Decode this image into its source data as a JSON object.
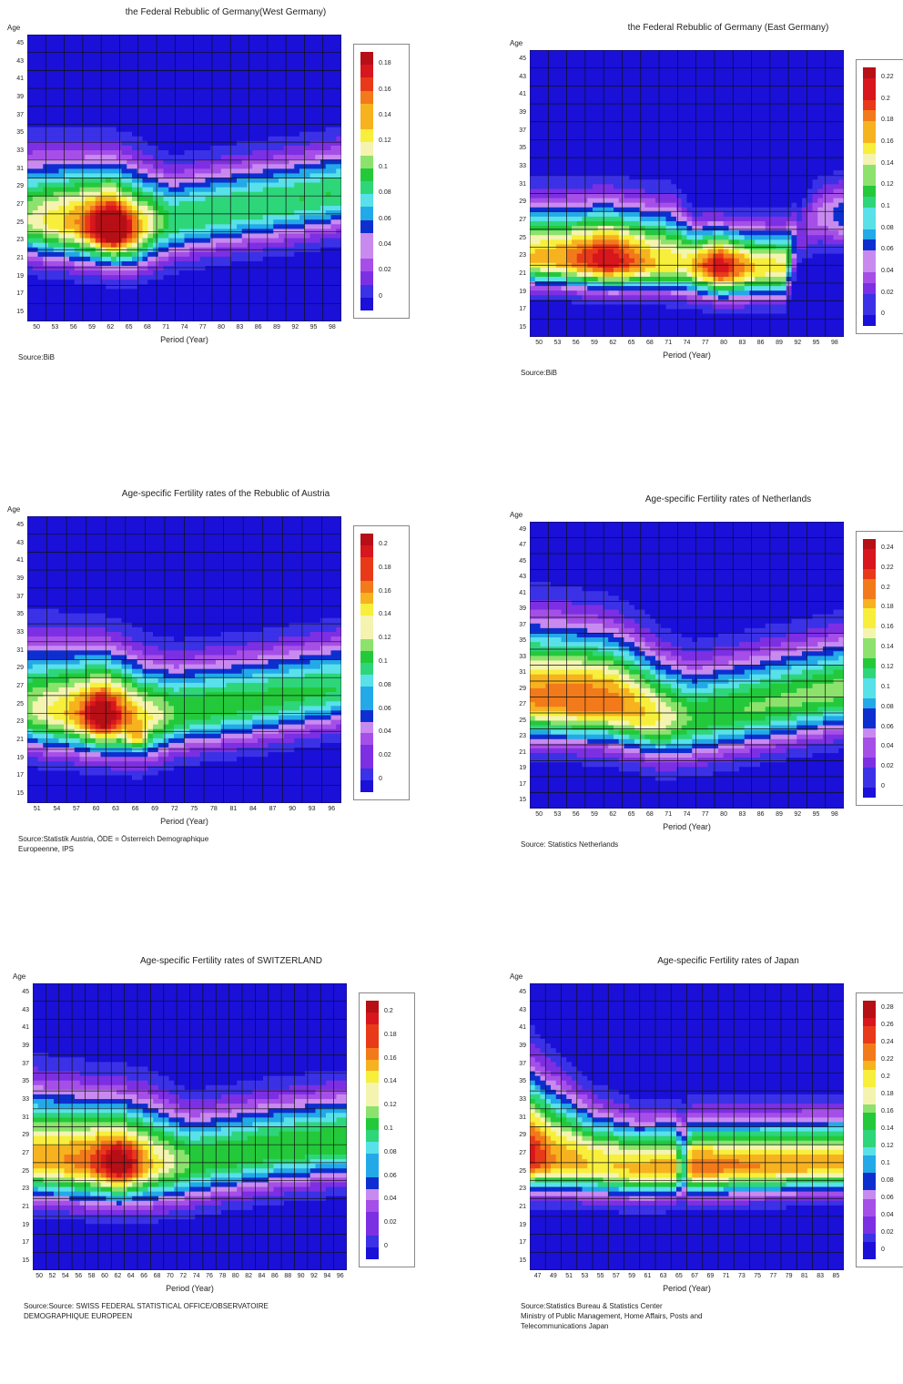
{
  "color_scale": [
    "#1a10d8",
    "#3b31e6",
    "#7d2fe3",
    "#a64fe8",
    "#c98af0",
    "#0d2fd0",
    "#23a9e8",
    "#58e1e9",
    "#2ed67a",
    "#23c93a",
    "#8ce26d",
    "#f4f4b0",
    "#f7ef3b",
    "#f7b21f",
    "#f27a1a",
    "#e83a19",
    "#d7161d",
    "#b60f16"
  ],
  "chart_data": [
    {
      "type": "heatmap",
      "title": "the Federal Rebublic of Germany(West  Germany)",
      "ylabel": "Age",
      "xlabel": "Period (Year)",
      "source": "Source:BiB",
      "x_ticks": [
        "50",
        "53",
        "56",
        "59",
        "62",
        "65",
        "68",
        "71",
        "74",
        "77",
        "80",
        "83",
        "86",
        "89",
        "92",
        "95",
        "98"
      ],
      "y_ticks": [
        "45",
        "43",
        "41",
        "39",
        "37",
        "35",
        "33",
        "31",
        "29",
        "27",
        "25",
        "23",
        "21",
        "19",
        "17",
        "15"
      ],
      "legend": [
        "0.18",
        "0.16",
        "0.14",
        "0.12",
        "0.1",
        "0.08",
        "0.06",
        "0.04",
        "0.02",
        "0"
      ],
      "xlim": [
        1950,
        1998
      ],
      "ylim": [
        15,
        46
      ],
      "peak": {
        "x": 1963,
        "age": 25,
        "value": 0.18
      },
      "center_age": [
        [
          1950,
          26
        ],
        [
          1960,
          25.5
        ],
        [
          1966,
          25
        ],
        [
          1972,
          26
        ],
        [
          1980,
          27
        ],
        [
          1990,
          28
        ],
        [
          1998,
          29
        ]
      ],
      "sigma_up": [
        [
          1950,
          8
        ],
        [
          1966,
          8
        ],
        [
          1972,
          6
        ],
        [
          1998,
          6
        ]
      ],
      "sigma_down": [
        [
          1950,
          5
        ],
        [
          1998,
          5
        ]
      ],
      "amp": [
        [
          1950,
          0.11
        ],
        [
          1958,
          0.14
        ],
        [
          1963,
          0.17
        ],
        [
          1967,
          0.13
        ],
        [
          1972,
          0.09
        ],
        [
          1998,
          0.09
        ]
      ],
      "hotspots": [
        {
          "x": 1963,
          "age": 25,
          "amp": 0.05,
          "sx": 3,
          "sy": 2
        }
      ]
    },
    {
      "type": "heatmap",
      "title": "the Federal Rebublic of Germany  (East Germany)",
      "ylabel": "Age",
      "xlabel": "Period (Year)",
      "source": "Source:BiB",
      "x_ticks": [
        "50",
        "53",
        "56",
        "59",
        "62",
        "65",
        "68",
        "71",
        "74",
        "77",
        "80",
        "83",
        "86",
        "89",
        "92",
        "95",
        "98"
      ],
      "y_ticks": [
        "45",
        "43",
        "41",
        "39",
        "37",
        "35",
        "33",
        "31",
        "29",
        "27",
        "25",
        "23",
        "21",
        "19",
        "17",
        "15"
      ],
      "legend": [
        "0.22",
        "0.2",
        "0.18",
        "0.16",
        "0.14",
        "0.12",
        "0.1",
        "0.08",
        "0.06",
        "0.04",
        "0.02",
        "0"
      ],
      "xlim": [
        1950,
        1998
      ],
      "ylim": [
        15,
        46
      ],
      "peak": {
        "x": 1962,
        "age": 23,
        "value": 0.22
      },
      "center_age": [
        [
          1950,
          23.5
        ],
        [
          1970,
          23
        ],
        [
          1980,
          22.5
        ],
        [
          1989,
          22.5
        ],
        [
          1991,
          26
        ],
        [
          1994,
          28
        ],
        [
          1998,
          28
        ]
      ],
      "sigma_up": [
        [
          1950,
          7
        ],
        [
          1972,
          7
        ],
        [
          1975,
          5
        ],
        [
          1989,
          5
        ],
        [
          1991,
          4
        ],
        [
          1998,
          5
        ]
      ],
      "sigma_down": [
        [
          1950,
          3.5
        ],
        [
          1998,
          4
        ]
      ],
      "amp": [
        [
          1950,
          0.16
        ],
        [
          1955,
          0.17
        ],
        [
          1962,
          0.21
        ],
        [
          1969,
          0.16
        ],
        [
          1974,
          0.15
        ],
        [
          1979,
          0.21
        ],
        [
          1984,
          0.16
        ],
        [
          1989,
          0.15
        ],
        [
          1991,
          0.03
        ],
        [
          1994,
          0.05
        ],
        [
          1998,
          0.07
        ]
      ],
      "hotspots": []
    },
    {
      "type": "heatmap",
      "title": "Age-specific Fertility rates of  the Rebublic of  Austria",
      "ylabel": "Age",
      "xlabel": "Period (Year)",
      "source": "Source:Statistik Austria,  ÖDE = Österreich    Demographique\nEuropeenne,  IPS",
      "x_ticks": [
        "51",
        "54",
        "57",
        "60",
        "63",
        "66",
        "69",
        "72",
        "75",
        "78",
        "81",
        "84",
        "87",
        "90",
        "93",
        "96"
      ],
      "y_ticks": [
        "45",
        "43",
        "41",
        "39",
        "37",
        "35",
        "33",
        "31",
        "29",
        "27",
        "25",
        "23",
        "21",
        "19",
        "17",
        "15"
      ],
      "legend": [
        "0.2",
        "0.18",
        "0.16",
        "0.14",
        "0.12",
        "0.1",
        "0.08",
        "0.06",
        "0.04",
        "0.02",
        "0"
      ],
      "xlim": [
        1951,
        1997
      ],
      "ylim": [
        15,
        46
      ],
      "peak": {
        "x": 1962,
        "age": 24.5,
        "value": 0.2
      },
      "center_age": [
        [
          1951,
          25
        ],
        [
          1962,
          24.5
        ],
        [
          1968,
          24
        ],
        [
          1974,
          25
        ],
        [
          1985,
          26
        ],
        [
          1997,
          27.5
        ]
      ],
      "sigma_up": [
        [
          1951,
          9
        ],
        [
          1966,
          8
        ],
        [
          1973,
          6.5
        ],
        [
          1997,
          6.5
        ]
      ],
      "sigma_down": [
        [
          1951,
          5
        ],
        [
          1997,
          5
        ]
      ],
      "amp": [
        [
          1951,
          0.12
        ],
        [
          1958,
          0.15
        ],
        [
          1962,
          0.18
        ],
        [
          1968,
          0.14
        ],
        [
          1973,
          0.11
        ],
        [
          1997,
          0.1
        ]
      ],
      "hotspots": [
        {
          "x": 1962,
          "age": 24.5,
          "amp": 0.04,
          "sx": 2.5,
          "sy": 2
        },
        {
          "x": 1967,
          "age": 22,
          "amp": 0.04,
          "sx": 1.2,
          "sy": 1
        }
      ]
    },
    {
      "type": "heatmap",
      "title": "Age-specific Fertility rates of  Netherlands",
      "ylabel": "Age",
      "xlabel": "Period (Year)",
      "source": "Source: Statistics Netherlands",
      "x_ticks": [
        "50",
        "53",
        "56",
        "59",
        "62",
        "65",
        "68",
        "71",
        "74",
        "77",
        "80",
        "83",
        "86",
        "89",
        "92",
        "95",
        "98"
      ],
      "y_ticks": [
        "49",
        "47",
        "45",
        "43",
        "41",
        "39",
        "37",
        "35",
        "33",
        "31",
        "29",
        "27",
        "25",
        "23",
        "21",
        "19",
        "17",
        "15"
      ],
      "legend": [
        "0.24",
        "0.22",
        "0.2",
        "0.18",
        "0.16",
        "0.14",
        "0.12",
        "0.1",
        "0.08",
        "0.06",
        "0.04",
        "0.02",
        "0"
      ],
      "xlim": [
        1950,
        1998
      ],
      "ylim": [
        15,
        50
      ],
      "peak": {
        "x": 1960,
        "age": 28,
        "value": 0.24
      },
      "center_age": [
        [
          1950,
          28.5
        ],
        [
          1962,
          28
        ],
        [
          1970,
          26
        ],
        [
          1975,
          26
        ],
        [
          1985,
          27.5
        ],
        [
          1998,
          29.5
        ]
      ],
      "sigma_up": [
        [
          1950,
          11
        ],
        [
          1966,
          10
        ],
        [
          1975,
          8
        ],
        [
          1998,
          8
        ]
      ],
      "sigma_down": [
        [
          1950,
          6
        ],
        [
          1998,
          6
        ]
      ],
      "amp": [
        [
          1950,
          0.19
        ],
        [
          1958,
          0.2
        ],
        [
          1964,
          0.19
        ],
        [
          1970,
          0.16
        ],
        [
          1975,
          0.13
        ],
        [
          1998,
          0.14
        ]
      ],
      "hotspots": []
    },
    {
      "type": "heatmap",
      "title": "Age-specific Fertility rates of   SWITZERLAND",
      "ylabel": "Age",
      "xlabel": "Period (Year)",
      "source": "Source:Source: SWISS FEDERAL STATISTICAL OFFICE/OBSERVATOIRE\nDEMOGRAPHIQUE EUROPEEN",
      "x_ticks": [
        "50",
        "52",
        "54",
        "56",
        "58",
        "60",
        "62",
        "64",
        "66",
        "68",
        "70",
        "72",
        "74",
        "76",
        "78",
        "80",
        "82",
        "84",
        "86",
        "88",
        "90",
        "92",
        "94",
        "96"
      ],
      "y_ticks": [
        "45",
        "43",
        "41",
        "39",
        "37",
        "35",
        "33",
        "31",
        "29",
        "27",
        "25",
        "23",
        "21",
        "19",
        "17",
        "15"
      ],
      "legend": [
        "0.2",
        "0.18",
        "0.16",
        "0.14",
        "0.12",
        "0.1",
        "0.08",
        "0.06",
        "0.04",
        "0.02",
        "0"
      ],
      "xlim": [
        1950,
        1997
      ],
      "ylim": [
        15,
        46
      ],
      "peak": {
        "x": 1963,
        "age": 26.5,
        "value": 0.2
      },
      "center_age": [
        [
          1950,
          27
        ],
        [
          1963,
          26.5
        ],
        [
          1972,
          26.5
        ],
        [
          1985,
          28
        ],
        [
          1997,
          29
        ]
      ],
      "sigma_up": [
        [
          1950,
          9
        ],
        [
          1968,
          8
        ],
        [
          1974,
          6.5
        ],
        [
          1997,
          6.5
        ]
      ],
      "sigma_down": [
        [
          1950,
          5
        ],
        [
          1997,
          5
        ]
      ],
      "amp": [
        [
          1950,
          0.15
        ],
        [
          1958,
          0.16
        ],
        [
          1963,
          0.18
        ],
        [
          1968,
          0.14
        ],
        [
          1974,
          0.11
        ],
        [
          1997,
          0.11
        ]
      ],
      "hotspots": [
        {
          "x": 1963,
          "age": 26.5,
          "amp": 0.03,
          "sx": 3,
          "sy": 2
        }
      ]
    },
    {
      "type": "heatmap",
      "title": "Age-specific Fertility rates of  Japan",
      "ylabel": "Age",
      "xlabel": "Period (Year)",
      "source": "Source:Statistics Bureau & Statistics Center\nMinistry of Public Management, Home Affairs, Posts and\nTelecommunications Japan",
      "x_ticks": [
        "47",
        "49",
        "51",
        "53",
        "55",
        "57",
        "59",
        "61",
        "63",
        "65",
        "67",
        "69",
        "71",
        "73",
        "75",
        "77",
        "79",
        "81",
        "83",
        "85"
      ],
      "y_ticks": [
        "45",
        "43",
        "41",
        "39",
        "37",
        "35",
        "33",
        "31",
        "29",
        "27",
        "25",
        "23",
        "21",
        "19",
        "17",
        "15"
      ],
      "legend": [
        "0.28",
        "0.26",
        "0.24",
        "0.22",
        "0.2",
        "0.18",
        "0.16",
        "0.14",
        "0.12",
        "0.1",
        "0.08",
        "0.06",
        "0.04",
        "0.02",
        "0"
      ],
      "xlim": [
        1947,
        1986
      ],
      "ylim": [
        15,
        46
      ],
      "peak": {
        "x": 1947,
        "age": 27,
        "value": 0.28
      },
      "center_age": [
        [
          1947,
          27
        ],
        [
          1960,
          26
        ],
        [
          1986,
          26.5
        ]
      ],
      "sigma_up": [
        [
          1947,
          11
        ],
        [
          1955,
          7
        ],
        [
          1960,
          6
        ],
        [
          1986,
          6
        ]
      ],
      "sigma_down": [
        [
          1947,
          4
        ],
        [
          1986,
          3.5
        ]
      ],
      "amp": [
        [
          1947,
          0.26
        ],
        [
          1950,
          0.22
        ],
        [
          1955,
          0.2
        ],
        [
          1965,
          0.21
        ],
        [
          1966,
          0.12
        ],
        [
          1967,
          0.23
        ],
        [
          1973,
          0.22
        ],
        [
          1986,
          0.21
        ]
      ],
      "hotspots": []
    }
  ]
}
